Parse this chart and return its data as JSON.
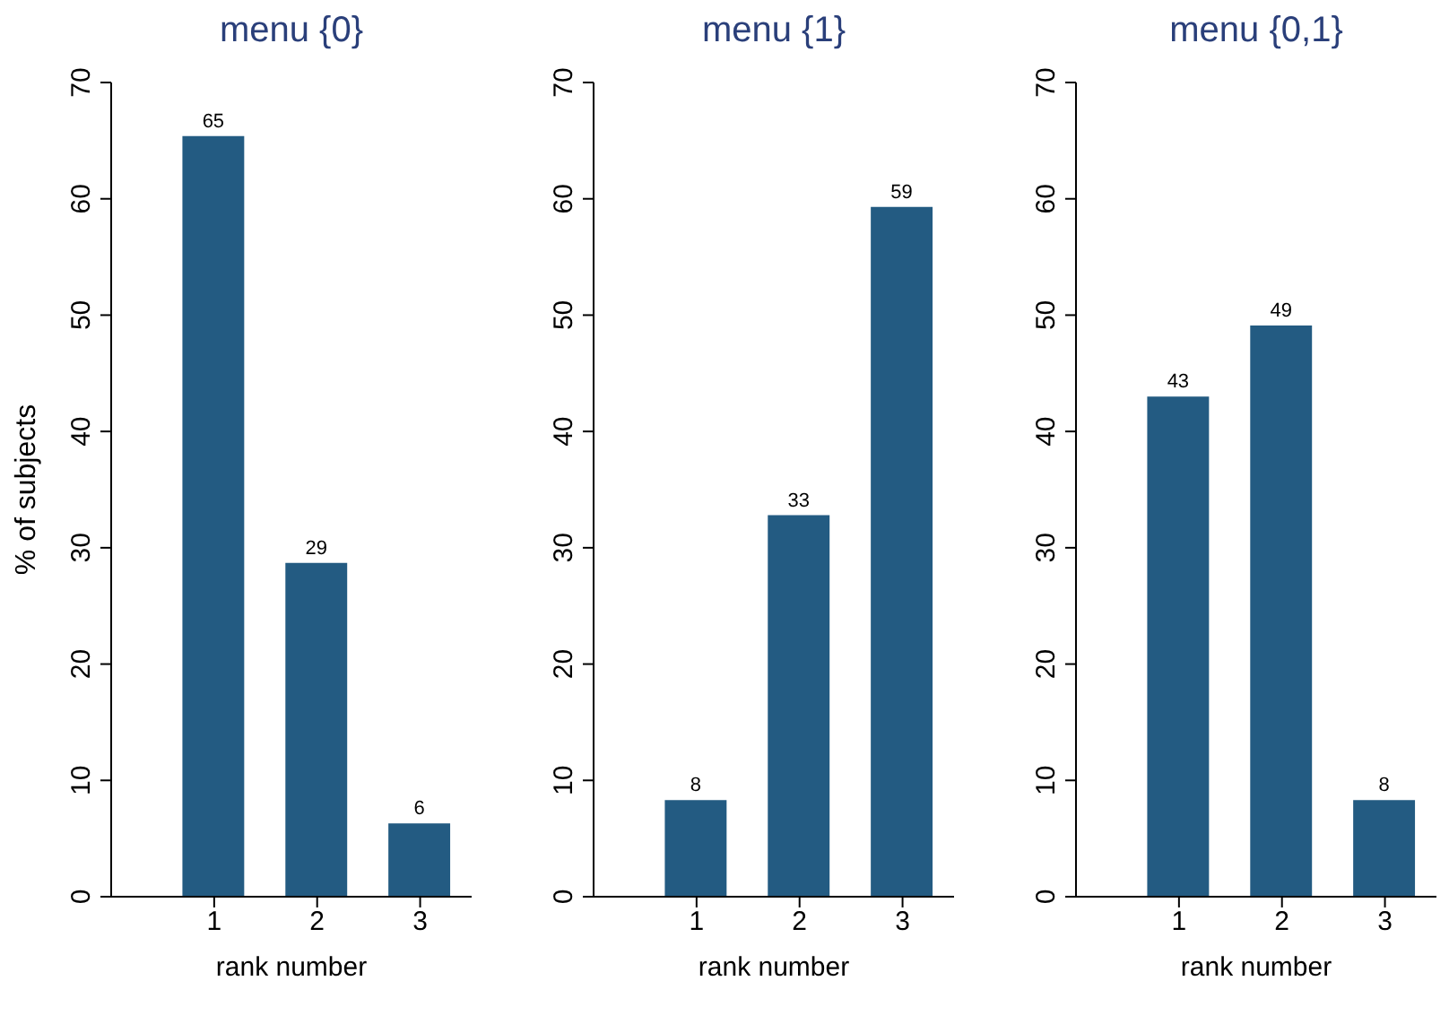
{
  "chart_data": [
    {
      "type": "bar",
      "title": "menu {0}",
      "xlabel": "rank number",
      "ylabel": "% of subjects",
      "x": [
        1,
        2,
        3
      ],
      "xlim": [
        0,
        3.5
      ],
      "xticks": [
        1,
        2,
        3
      ],
      "ylim": [
        0,
        70
      ],
      "yticks": [
        0,
        10,
        20,
        30,
        40,
        50,
        60,
        70
      ],
      "values": [
        65.4,
        28.7,
        6.3
      ],
      "value_labels": [
        "65",
        "29",
        "6"
      ],
      "color": "#235b82"
    },
    {
      "type": "bar",
      "title": "menu {1}",
      "xlabel": "rank number",
      "x": [
        1,
        2,
        3
      ],
      "xlim": [
        0,
        3.5
      ],
      "xticks": [
        1,
        2,
        3
      ],
      "ylim": [
        0,
        70
      ],
      "yticks": [
        0,
        10,
        20,
        30,
        40,
        50,
        60,
        70
      ],
      "values": [
        8.3,
        32.8,
        59.3
      ],
      "value_labels": [
        "8",
        "33",
        "59"
      ],
      "color": "#235b82"
    },
    {
      "type": "bar",
      "title": "menu {0,1}",
      "xlabel": "rank number",
      "x": [
        1,
        2,
        3
      ],
      "xlim": [
        0,
        3.5
      ],
      "xticks": [
        1,
        2,
        3
      ],
      "ylim": [
        0,
        70
      ],
      "yticks": [
        0,
        10,
        20,
        30,
        40,
        50,
        60,
        70
      ],
      "values": [
        43.0,
        49.1,
        8.3
      ],
      "value_labels": [
        "43",
        "49",
        "8"
      ],
      "color": "#235b82"
    }
  ]
}
